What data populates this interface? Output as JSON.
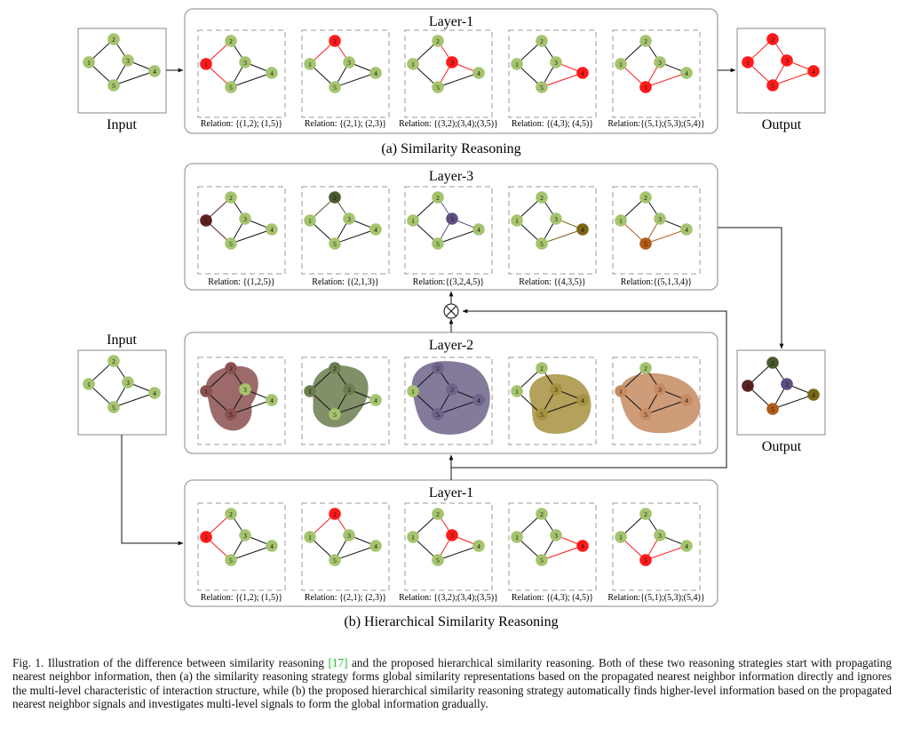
{
  "figure": {
    "input_label": "Input",
    "output_label": "Output",
    "layer1_title": "Layer-1",
    "layer2_title": "Layer-2",
    "layer3_title": "Layer-3",
    "subcaption_a": "(a) Similarity Reasoning",
    "subcaption_b": "(b) Hierarchical Similarity Reasoning",
    "node_labels": [
      "1",
      "2",
      "3",
      "4",
      "5"
    ],
    "layer1_relations": [
      "Relation: {(1,2); (1,5)}",
      "Relation: {(2,1); (2,3)}",
      "Relation: {(3,2);(3,4);(3,5)}",
      "Relation: {(4,3); (4,5)}",
      "Relation:{(5,1);(5,3);(5,4)}"
    ],
    "layer3_relations": [
      "Relation: {(1,2,5)}",
      "Relation: {(2,1,3)}",
      "Relation:{(3,2,4,5)}",
      "Relation: {(4,3,5)}",
      "Relation:{(5,1,3,4)}"
    ],
    "layer1_relations_b": [
      "Relation: {(1,2); (1,5)}",
      "Relation: {(2,1); (2,3)}",
      "Relation: {(3,2);(3,4);(3,5)}",
      "Relation: {(4,3); (4,5)}",
      "Relation:{(5,1);(5,3);(5,4)}"
    ],
    "colors": {
      "node_default": "#a5c46e",
      "highlight_red": "#ff1a1a",
      "node1_l3": "#5a2020",
      "node2_l3": "#4b5a2c",
      "node3_l3": "#5e4f80",
      "node4_l3": "#7a6514",
      "node5_l3": "#b25c1a",
      "blob1": "#8b5050",
      "blob2": "#6b7d4d",
      "blob3": "#6e6489",
      "blob4": "#a6913f",
      "blob5": "#c68b62"
    }
  },
  "caption": {
    "prefix": "Fig. 1.  Illustration of the difference between similarity reasoning ",
    "citation": "[17]",
    "suffix": " and the proposed hierarchical similarity reasoning. Both of these two reasoning strategies start with propagating nearest neighbor information, then (a) the similarity reasoning strategy forms global similarity representations based on the propagated nearest neighbor information directly and ignores the multi-level characteristic of interaction structure, while (b) the proposed hierarchical similarity reasoning strategy automatically finds higher-level information based on the propagated nearest neighbor signals and investigates multi-level signals to form the global information gradually."
  }
}
